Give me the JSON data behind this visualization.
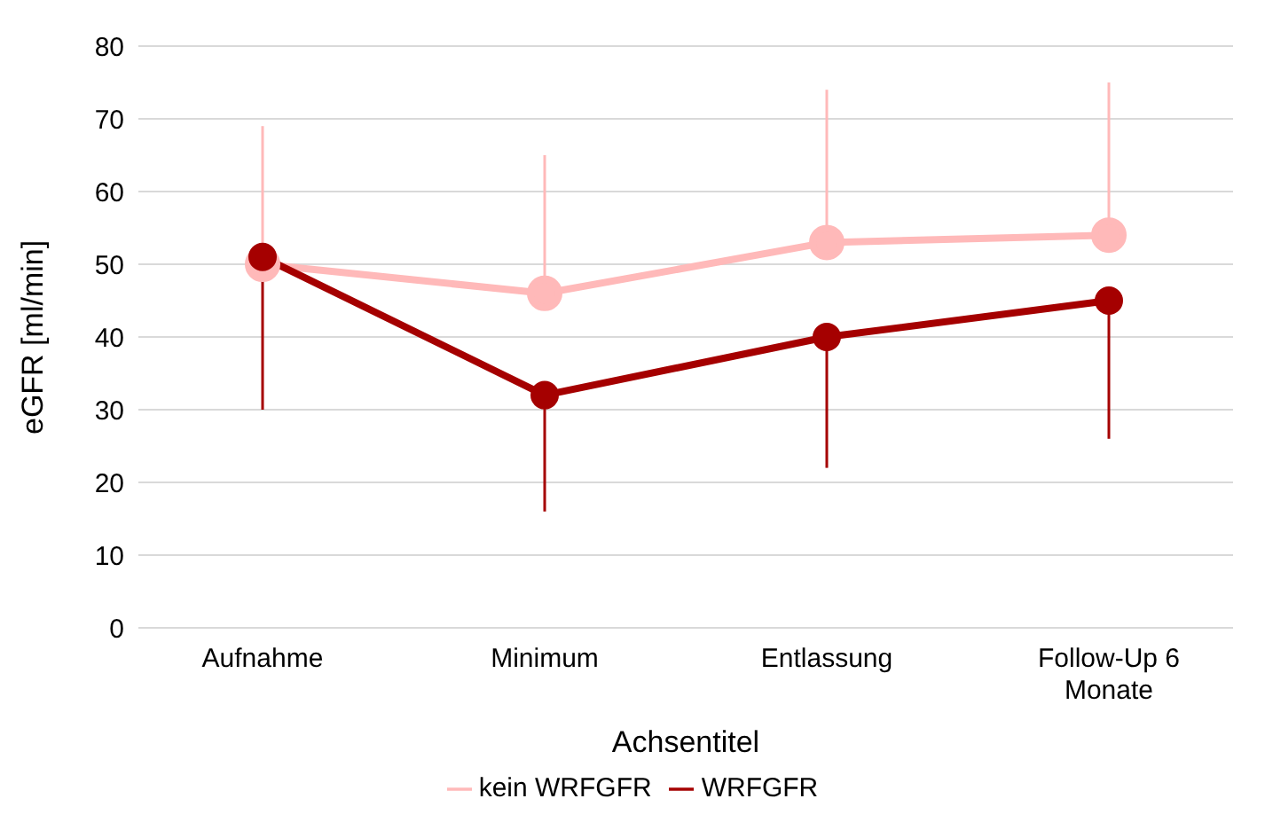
{
  "chart_data": {
    "type": "line",
    "xlabel": "Achsentitel",
    "ylabel": "eGFR [ml/min]",
    "categories": [
      "Aufnahme",
      "Minimum",
      "Entlassung",
      "Follow-Up 6 Monate"
    ],
    "series": [
      {
        "name": "kein WRFGFR",
        "color": "#ffb9b9",
        "values": [
          50,
          46,
          53,
          54
        ],
        "errors": [
          [
            50,
            69
          ],
          [
            46,
            65
          ],
          [
            53,
            74
          ],
          [
            54,
            75
          ]
        ]
      },
      {
        "name": "WRFGFR",
        "color": "#a50000",
        "values": [
          51,
          32,
          40,
          45
        ],
        "errors": [
          [
            30,
            51
          ],
          [
            16,
            32
          ],
          [
            22,
            40
          ],
          [
            26,
            45
          ]
        ]
      }
    ],
    "ylim": [
      0,
      80
    ],
    "yticks": [
      0,
      10,
      20,
      30,
      40,
      50,
      60,
      70,
      80
    ],
    "grid": "y",
    "legend": "bottom",
    "marker": "circle",
    "line_style": "solid"
  }
}
